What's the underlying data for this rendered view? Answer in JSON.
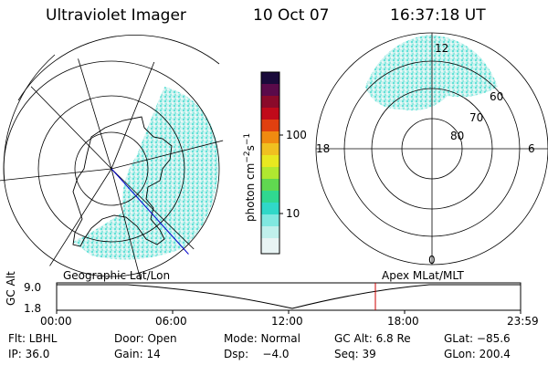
{
  "header": {
    "title": "Ultraviolet Imager",
    "date": "10 Oct 07",
    "time": "16:37:18 UT"
  },
  "colorbar": {
    "label": "photon cm",
    "label_sup1": "−2",
    "label_mid": "s",
    "label_sup2": "−1",
    "ticks": [
      "100",
      "10"
    ],
    "colors": [
      "#1a0a3a",
      "#5a0a4a",
      "#8a0a2a",
      "#c00a1a",
      "#e04010",
      "#f08a10",
      "#f0c020",
      "#e8e820",
      "#b0e830",
      "#60d850",
      "#30d890",
      "#30d8c8",
      "#80e8e0",
      "#c0f0ec",
      "#e8f4f4"
    ]
  },
  "polar_plot": {
    "mlt_labels": [
      "12",
      "6",
      "0",
      "18"
    ],
    "lat_labels": [
      "60",
      "70",
      "80"
    ]
  },
  "timeline": {
    "left_caption": "Geographic Lat/Lon",
    "right_caption": "Apex MLat/MLT",
    "y_axis_title": "GC Alt",
    "y_ticks": [
      "9.0",
      "1.8"
    ],
    "x_ticks": [
      "00:00",
      "06:00",
      "12:00",
      "18:00",
      "23:59"
    ]
  },
  "status": {
    "row1": {
      "filter": "Flt: LBHL",
      "door": "Door: Open",
      "mode": "Mode: Normal",
      "gc_alt": "GC Alt: 6.8 Re",
      "glat": "GLat: −85.6"
    },
    "row2": {
      "ip": "IP: 36.0",
      "gain": "Gain: 14",
      "dsp": "Dsp:    −4.0",
      "seq": "Seq: 39",
      "glon": "GLon: 200.4"
    }
  },
  "colors": {
    "aurora": "#46dcd0",
    "terminator": "#0000cc",
    "cursor": "#cc0000"
  }
}
